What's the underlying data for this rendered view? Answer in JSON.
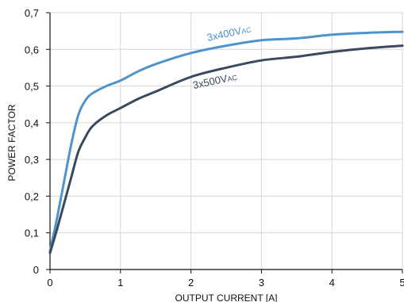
{
  "chart_data": {
    "type": "line",
    "title": "",
    "xlabel": "OUTPUT CURRENT [A]",
    "ylabel": "POWER FACTOR",
    "xlim": [
      0,
      5
    ],
    "ylim": [
      0,
      0.7
    ],
    "grid": true,
    "x_ticks": [
      "0",
      "1",
      "2",
      "3",
      "4",
      "5"
    ],
    "y_ticks": [
      "0",
      "0,1",
      "0,2",
      "0,3",
      "0,4",
      "0,5",
      "0,6",
      "0,7"
    ],
    "series": [
      {
        "name": "3x400VAC",
        "label_main": "3x400V",
        "label_sub": "AC",
        "color": "#4f93cc",
        "x": [
          0,
          0.1,
          0.2,
          0.3,
          0.4,
          0.5,
          0.6,
          0.8,
          1.0,
          1.25,
          1.5,
          2.0,
          2.5,
          3.0,
          3.5,
          4.0,
          4.5,
          5.0
        ],
        "y": [
          0.05,
          0.14,
          0.24,
          0.34,
          0.42,
          0.46,
          0.48,
          0.5,
          0.515,
          0.54,
          0.56,
          0.59,
          0.61,
          0.625,
          0.63,
          0.64,
          0.645,
          0.648
        ]
      },
      {
        "name": "3x500VAC",
        "label_main": "3x500V",
        "label_sub": "AC",
        "color": "#3a4a5e",
        "x": [
          0,
          0.1,
          0.2,
          0.3,
          0.4,
          0.5,
          0.6,
          0.8,
          1.0,
          1.25,
          1.5,
          2.0,
          2.5,
          3.0,
          3.5,
          4.0,
          4.5,
          5.0
        ],
        "y": [
          0.045,
          0.11,
          0.18,
          0.25,
          0.32,
          0.36,
          0.39,
          0.42,
          0.44,
          0.465,
          0.485,
          0.525,
          0.55,
          0.57,
          0.58,
          0.593,
          0.603,
          0.61
        ]
      }
    ]
  }
}
